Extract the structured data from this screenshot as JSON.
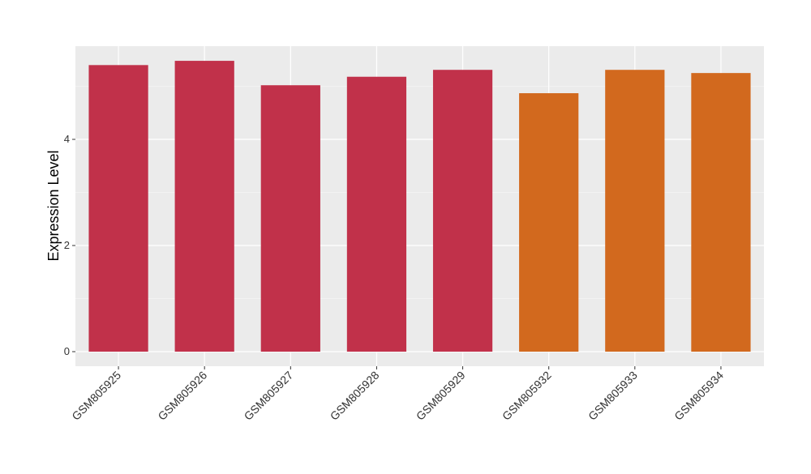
{
  "chart_data": {
    "type": "bar",
    "y_label": "Expression Level",
    "categories": [
      "GSM805925",
      "GSM805926",
      "GSM805927",
      "GSM805928",
      "GSM805929",
      "GSM805932",
      "GSM805933",
      "GSM805934"
    ],
    "values": [
      5.4,
      5.48,
      5.02,
      5.18,
      5.31,
      4.87,
      5.31,
      5.25
    ],
    "colors": [
      "#c1314a",
      "#c1314a",
      "#c1314a",
      "#c1314a",
      "#c1314a",
      "#d2691e",
      "#d2691e",
      "#d2691e"
    ],
    "ylim": [
      -0.275,
      5.756
    ],
    "yticks": [
      0,
      2,
      4
    ],
    "minor_gridlines": [
      1,
      3,
      5
    ],
    "grid": true
  }
}
